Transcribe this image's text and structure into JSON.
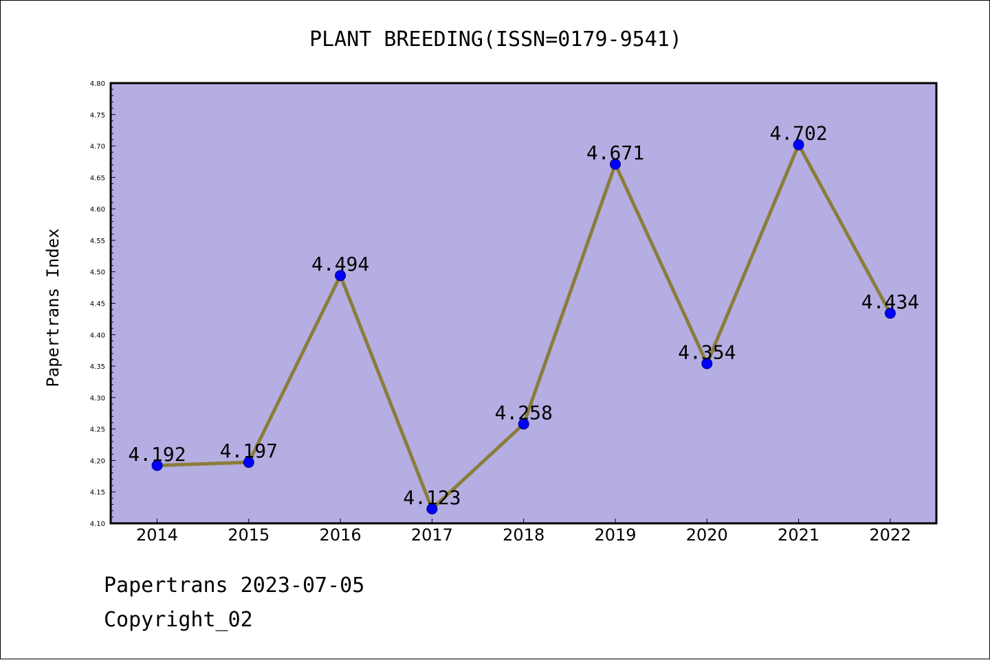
{
  "chart_data": {
    "type": "line",
    "title": "PLANT BREEDING(ISSN=0179-9541)",
    "xlabel": "",
    "ylabel": "Papertrans Index",
    "categories": [
      "2014",
      "2015",
      "2016",
      "2017",
      "2018",
      "2019",
      "2020",
      "2021",
      "2022"
    ],
    "values": [
      4.192,
      4.197,
      4.494,
      4.123,
      4.258,
      4.671,
      4.354,
      4.702,
      4.434
    ],
    "data_labels": [
      "4.192",
      "4.197",
      "4.494",
      "4.123",
      "4.258",
      "4.671",
      "4.354",
      "4.702",
      "4.434"
    ],
    "ylim": [
      4.1,
      4.8
    ],
    "y_ticks": [
      "4.10",
      "4.15",
      "4.20",
      "4.25",
      "4.30",
      "4.35",
      "4.40",
      "4.45",
      "4.50",
      "4.55",
      "4.60",
      "4.65",
      "4.70",
      "4.75",
      "4.80"
    ],
    "grid": false,
    "legend": "none",
    "colors": {
      "plot_background": "#b5aee3",
      "line": "#8b7d3a",
      "marker": "#0000ff"
    }
  },
  "footer": {
    "line1": "Papertrans 2023-07-05",
    "line2": "Copyright_02"
  }
}
